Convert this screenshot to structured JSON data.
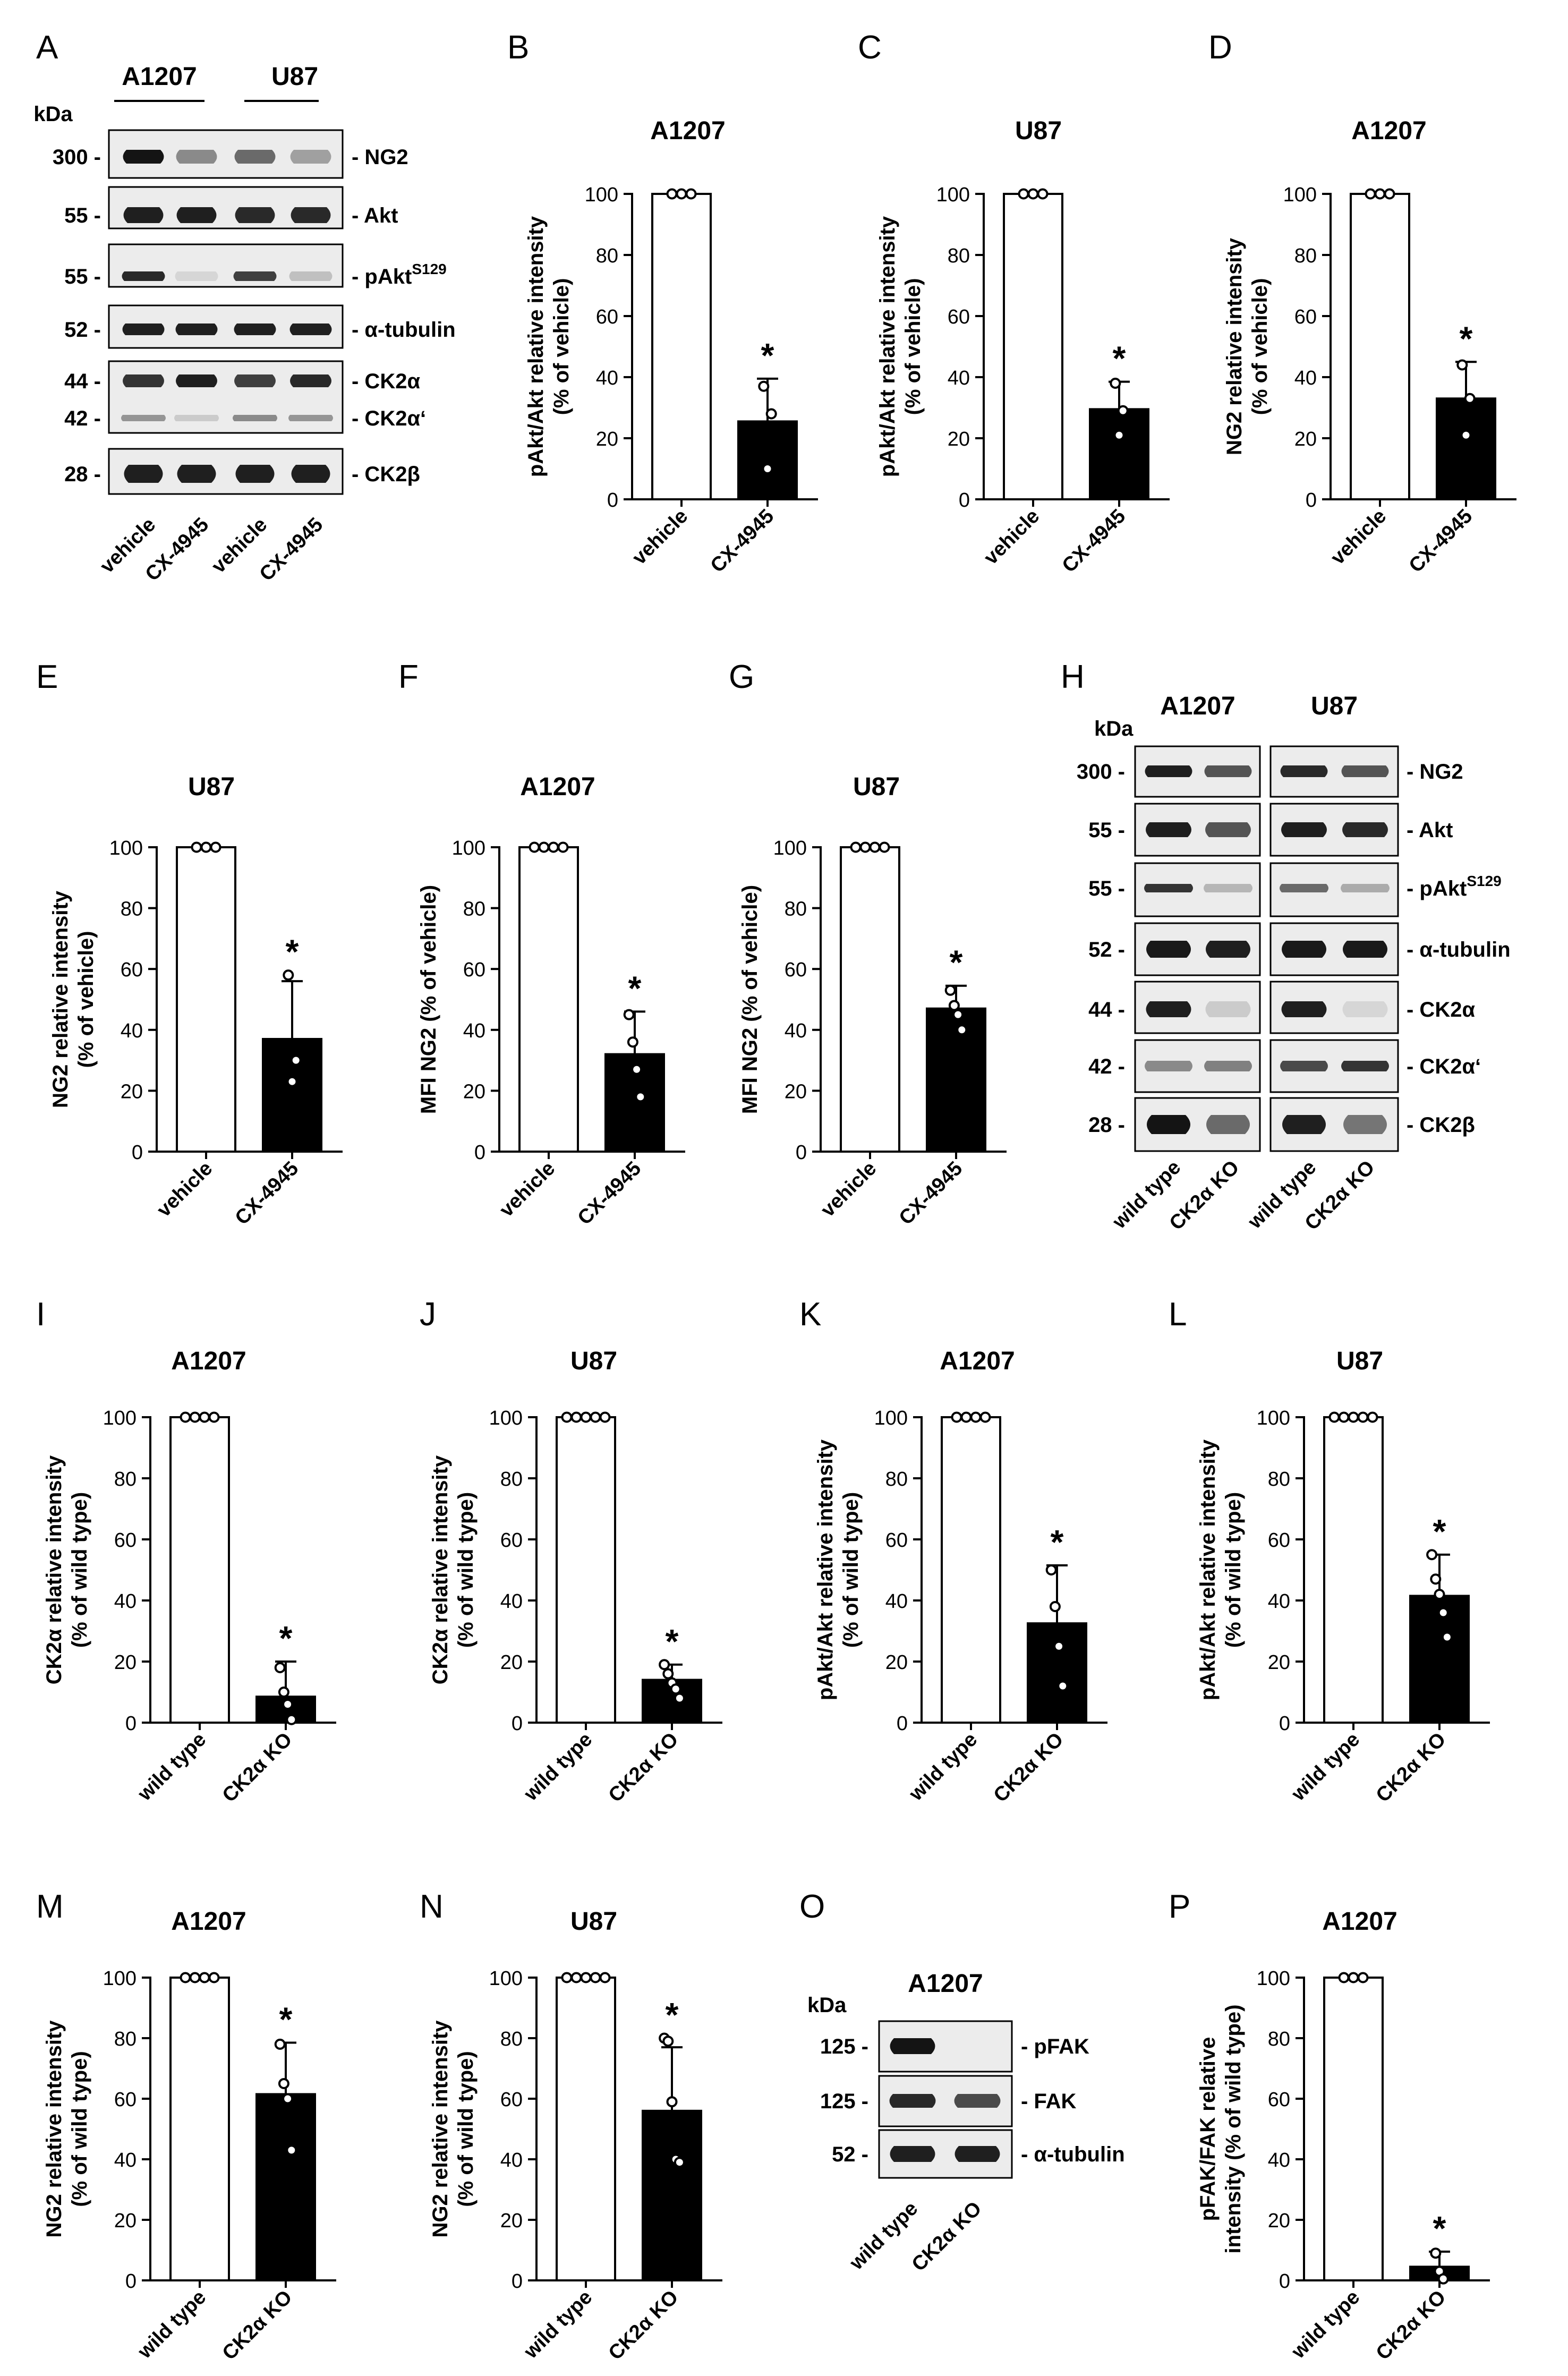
{
  "figure": {
    "colors": {
      "control_bar": "#ffffff",
      "treated_bar": "#000000",
      "axis": "#000000",
      "blot_bg": "#ececec",
      "band": "#141414"
    }
  },
  "chart_data": [
    {
      "panel": "B",
      "type": "bar",
      "title": "A1207",
      "ylabel": "pAkt/Akt relative intensity\n(% of vehicle)",
      "categories": [
        "vehicle",
        "CX-4945"
      ],
      "values": [
        100,
        25.5
      ],
      "errors": [
        0,
        14
      ],
      "points": [
        [
          100,
          100,
          100
        ],
        [
          37,
          10,
          28
        ]
      ],
      "significance": [
        false,
        true
      ],
      "ylim": [
        0,
        100
      ],
      "yticks": [
        0,
        20,
        40,
        60,
        80,
        100
      ]
    },
    {
      "panel": "C",
      "type": "bar",
      "title": "U87",
      "ylabel": "pAkt/Akt relative intensity\n(% of vehicle)",
      "categories": [
        "vehicle",
        "CX-4945"
      ],
      "values": [
        100,
        29.5
      ],
      "errors": [
        0,
        9
      ],
      "points": [
        [
          100,
          100,
          100
        ],
        [
          38,
          21,
          29
        ]
      ],
      "significance": [
        false,
        true
      ],
      "ylim": [
        0,
        100
      ],
      "yticks": [
        0,
        20,
        40,
        60,
        80,
        100
      ]
    },
    {
      "panel": "D",
      "type": "bar",
      "title": "A1207",
      "ylabel": "NG2 relative intensity\n(% of vehicle)",
      "categories": [
        "vehicle",
        "CX-4945"
      ],
      "values": [
        100,
        33
      ],
      "errors": [
        0,
        12
      ],
      "points": [
        [
          100,
          100,
          100
        ],
        [
          44,
          21,
          33
        ]
      ],
      "significance": [
        false,
        true
      ],
      "ylim": [
        0,
        100
      ],
      "yticks": [
        0,
        20,
        40,
        60,
        80,
        100
      ]
    },
    {
      "panel": "E",
      "type": "bar",
      "title": "U87",
      "ylabel": "NG2 relative intensity\n(% of vehicle)",
      "categories": [
        "vehicle",
        "CX-4945"
      ],
      "values": [
        100,
        37
      ],
      "errors": [
        0,
        19
      ],
      "points": [
        [
          100,
          100,
          100
        ],
        [
          58,
          23,
          30
        ]
      ],
      "significance": [
        false,
        true
      ],
      "ylim": [
        0,
        100
      ],
      "yticks": [
        0,
        20,
        40,
        60,
        80,
        100
      ]
    },
    {
      "panel": "F",
      "type": "bar",
      "title": "A1207",
      "ylabel": "MFI NG2 (% of vehicle)",
      "categories": [
        "vehicle",
        "CX-4945"
      ],
      "values": [
        100,
        32
      ],
      "errors": [
        0,
        14
      ],
      "points": [
        [
          100,
          100,
          100,
          100
        ],
        [
          45,
          36,
          27,
          18
        ]
      ],
      "significance": [
        false,
        true
      ],
      "ylim": [
        0,
        100
      ],
      "yticks": [
        0,
        20,
        40,
        60,
        80,
        100
      ]
    },
    {
      "panel": "G",
      "type": "bar",
      "title": "U87",
      "ylabel": "MFI NG2 (% of vehicle)",
      "categories": [
        "vehicle",
        "CX-4945"
      ],
      "values": [
        100,
        47
      ],
      "errors": [
        0,
        7.5
      ],
      "points": [
        [
          100,
          100,
          100,
          100
        ],
        [
          53,
          48,
          45,
          40
        ]
      ],
      "significance": [
        false,
        true
      ],
      "ylim": [
        0,
        100
      ],
      "yticks": [
        0,
        20,
        40,
        60,
        80,
        100
      ]
    },
    {
      "panel": "I",
      "type": "bar",
      "title": "A1207",
      "ylabel": "CK2α relative intensity\n(% of wild type)",
      "categories": [
        "wild type",
        "CK2α KO"
      ],
      "values": [
        100,
        8.5
      ],
      "errors": [
        0,
        11.5
      ],
      "points": [
        [
          100,
          100,
          100,
          100
        ],
        [
          18,
          10,
          6,
          1
        ]
      ],
      "significance": [
        false,
        true
      ],
      "ylim": [
        0,
        100
      ],
      "yticks": [
        0,
        20,
        40,
        60,
        80,
        100
      ]
    },
    {
      "panel": "J",
      "type": "bar",
      "title": "U87",
      "ylabel": "CK2α relative intensity\n(% of wild type)",
      "categories": [
        "wild type",
        "CK2α KO"
      ],
      "values": [
        100,
        14
      ],
      "errors": [
        0,
        5
      ],
      "points": [
        [
          100,
          100,
          100,
          100,
          100
        ],
        [
          19,
          16,
          13,
          11,
          8
        ]
      ],
      "significance": [
        false,
        true
      ],
      "ylim": [
        0,
        100
      ],
      "yticks": [
        0,
        20,
        40,
        60,
        80,
        100
      ]
    },
    {
      "panel": "K",
      "type": "bar",
      "title": "A1207",
      "ylabel": "pAkt/Akt relative intensity\n(% of wild type)",
      "categories": [
        "wild type",
        "CK2α KO"
      ],
      "values": [
        100,
        32.5
      ],
      "errors": [
        0,
        19
      ],
      "points": [
        [
          100,
          100,
          100,
          100
        ],
        [
          50,
          38,
          25,
          12
        ]
      ],
      "significance": [
        false,
        true
      ],
      "ylim": [
        0,
        100
      ],
      "yticks": [
        0,
        20,
        40,
        60,
        80,
        100
      ]
    },
    {
      "panel": "L",
      "type": "bar",
      "title": "U87",
      "ylabel": "pAkt/Akt relative intensity\n(% of wild type)",
      "categories": [
        "wild type",
        "CK2α KO"
      ],
      "values": [
        100,
        41.5
      ],
      "errors": [
        0,
        13.5
      ],
      "points": [
        [
          100,
          100,
          100,
          100,
          100
        ],
        [
          55,
          47,
          42,
          36,
          28
        ]
      ],
      "significance": [
        false,
        true
      ],
      "ylim": [
        0,
        100
      ],
      "yticks": [
        0,
        20,
        40,
        60,
        80,
        100
      ]
    },
    {
      "panel": "M",
      "type": "bar",
      "title": "A1207",
      "ylabel": "NG2 relative intensity\n(% of wild type)",
      "categories": [
        "wild type",
        "CK2α KO"
      ],
      "values": [
        100,
        61.5
      ],
      "errors": [
        0,
        17
      ],
      "points": [
        [
          100,
          100,
          100,
          100
        ],
        [
          78,
          65,
          60,
          43
        ]
      ],
      "significance": [
        false,
        true
      ],
      "ylim": [
        0,
        100
      ],
      "yticks": [
        0,
        20,
        40,
        60,
        80,
        100
      ]
    },
    {
      "panel": "N",
      "type": "bar",
      "title": "U87",
      "ylabel": "NG2 relative intensity\n(% of wild type)",
      "categories": [
        "wild type",
        "CK2α KO"
      ],
      "values": [
        100,
        56
      ],
      "errors": [
        0,
        21
      ],
      "points": [
        [
          100,
          100,
          100,
          100,
          100
        ],
        [
          80,
          79,
          59,
          40,
          39
        ]
      ],
      "significance": [
        false,
        true
      ],
      "ylim": [
        0,
        100
      ],
      "yticks": [
        0,
        20,
        40,
        60,
        80,
        100
      ]
    },
    {
      "panel": "P",
      "type": "bar",
      "title": "A1207",
      "ylabel": "pFAK/FAK relative\nintensity (% of wild type)",
      "categories": [
        "wild type",
        "CK2α KO"
      ],
      "values": [
        100,
        4.5
      ],
      "errors": [
        0,
        5
      ],
      "points": [
        [
          100,
          100,
          100
        ],
        [
          9,
          3,
          0.5
        ]
      ],
      "significance": [
        false,
        true
      ],
      "ylim": [
        0,
        100
      ],
      "yticks": [
        0,
        20,
        40,
        60,
        80,
        100
      ]
    }
  ],
  "blots": [
    {
      "panel": "A",
      "kda_label": "kDa",
      "groups": [
        "A1207",
        "U87"
      ],
      "markers": [
        {
          "kda": "300 -",
          "protein": "- NG2"
        },
        {
          "kda": "55 -",
          "protein": "- Akt"
        },
        {
          "kda": "55 -",
          "protein": "- pAkt",
          "protein_sup": "S129"
        },
        {
          "kda": "52 -",
          "protein": "- α-tubulin"
        },
        {
          "kda": "44 -",
          "protein": "- CK2α"
        },
        {
          "kda": "42 -",
          "protein": "- CK2α‘"
        },
        {
          "kda": "28 -",
          "protein": "- CK2β"
        }
      ],
      "lane_labels": [
        "vehicle",
        "CX-4945",
        "vehicle",
        "CX-4945"
      ]
    },
    {
      "panel": "H",
      "kda_label": "kDa",
      "groups": [
        "A1207",
        "U87"
      ],
      "markers": [
        {
          "kda": "300 -",
          "protein": "- NG2"
        },
        {
          "kda": "55 -",
          "protein": "- Akt"
        },
        {
          "kda": "55 -",
          "protein": "- pAkt",
          "protein_sup": "S129"
        },
        {
          "kda": "52 -",
          "protein": "- α-tubulin"
        },
        {
          "kda": "44 -",
          "protein": "- CK2α"
        },
        {
          "kda": "42 -",
          "protein": "- CK2α‘"
        },
        {
          "kda": "28 -",
          "protein": "- CK2β"
        }
      ],
      "lane_labels": [
        "wild type",
        "CK2α KO",
        "wild type",
        "CK2α KO"
      ]
    },
    {
      "panel": "O",
      "kda_label": "kDa",
      "groups": [
        "A1207"
      ],
      "markers": [
        {
          "kda": "125 -",
          "protein": "- pFAK"
        },
        {
          "kda": "125 -",
          "protein": "- FAK"
        },
        {
          "kda": "52 -",
          "protein": "- α-tubulin"
        }
      ],
      "lane_labels": [
        "wild type",
        "CK2α KO"
      ]
    }
  ]
}
